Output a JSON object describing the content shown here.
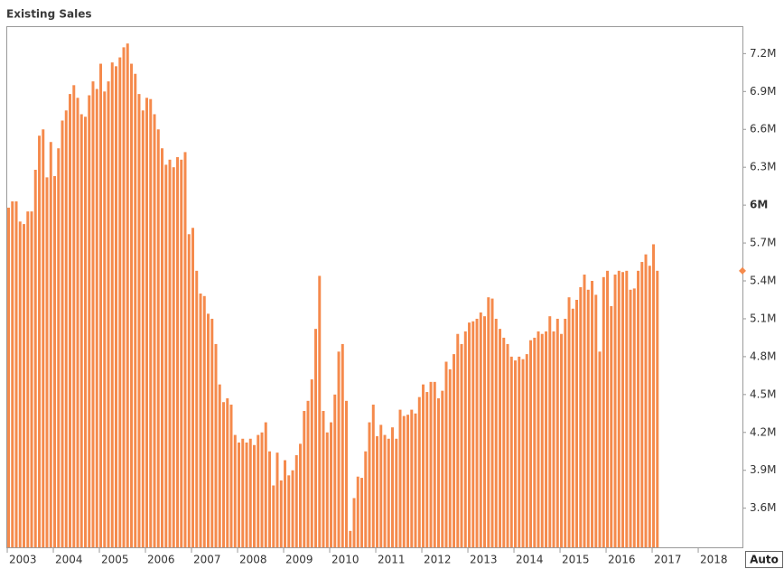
{
  "chart_data": {
    "type": "bar",
    "title": "Existing Sales",
    "auto_button_label": "Auto",
    "color": "#f58a4c",
    "grid": false,
    "x": [
      2003,
      2003.083,
      2003.167,
      2003.25,
      2003.333,
      2003.417,
      2003.5,
      2003.583,
      2003.667,
      2003.75,
      2003.833,
      2003.917,
      2004,
      2004.083,
      2004.167,
      2004.25,
      2004.333,
      2004.417,
      2004.5,
      2004.583,
      2004.667,
      2004.75,
      2004.833,
      2004.917,
      2005,
      2005.083,
      2005.167,
      2005.25,
      2005.333,
      2005.417,
      2005.5,
      2005.583,
      2005.667,
      2005.75,
      2005.833,
      2005.917,
      2006,
      2006.083,
      2006.167,
      2006.25,
      2006.333,
      2006.417,
      2006.5,
      2006.583,
      2006.667,
      2006.75,
      2006.833,
      2006.917,
      2007,
      2007.083,
      2007.167,
      2007.25,
      2007.333,
      2007.417,
      2007.5,
      2007.583,
      2007.667,
      2007.75,
      2007.833,
      2007.917,
      2008,
      2008.083,
      2008.167,
      2008.25,
      2008.333,
      2008.417,
      2008.5,
      2008.583,
      2008.667,
      2008.75,
      2008.833,
      2008.917,
      2009,
      2009.083,
      2009.167,
      2009.25,
      2009.333,
      2009.417,
      2009.5,
      2009.583,
      2009.667,
      2009.75,
      2009.833,
      2009.917,
      2010,
      2010.083,
      2010.167,
      2010.25,
      2010.333,
      2010.417,
      2010.5,
      2010.583,
      2010.667,
      2010.75,
      2010.833,
      2010.917,
      2011,
      2011.083,
      2011.167,
      2011.25,
      2011.333,
      2011.417,
      2011.5,
      2011.583,
      2011.667,
      2011.75,
      2011.833,
      2011.917,
      2012,
      2012.083,
      2012.167,
      2012.25,
      2012.333,
      2012.417,
      2012.5,
      2012.583,
      2012.667,
      2012.75,
      2012.833,
      2012.917,
      2013,
      2013.083,
      2013.167,
      2013.25,
      2013.333,
      2013.417,
      2013.5,
      2013.583,
      2013.667,
      2013.75,
      2013.833,
      2013.917,
      2014,
      2014.083,
      2014.167,
      2014.25,
      2014.333,
      2014.417,
      2014.5,
      2014.583,
      2014.667,
      2014.75,
      2014.833,
      2014.917,
      2015,
      2015.083,
      2015.167,
      2015.25,
      2015.333,
      2015.417,
      2015.5,
      2015.583,
      2015.667,
      2015.75,
      2015.833,
      2015.917,
      2016,
      2016.083,
      2016.167,
      2016.25,
      2016.333,
      2016.417,
      2016.5,
      2016.583,
      2016.667,
      2016.75,
      2016.833,
      2016.917,
      2017,
      2017.083
    ],
    "values": [
      5980000,
      6030000,
      6030000,
      5870000,
      5850000,
      5950000,
      5950000,
      6280000,
      6550000,
      6600000,
      6220000,
      6500000,
      6230000,
      6450000,
      6670000,
      6750000,
      6880000,
      6950000,
      6850000,
      6720000,
      6700000,
      6870000,
      6980000,
      6920000,
      7120000,
      6900000,
      6980000,
      7130000,
      7100000,
      7170000,
      7250000,
      7280000,
      7120000,
      7040000,
      6880000,
      6750000,
      6850000,
      6840000,
      6720000,
      6600000,
      6450000,
      6320000,
      6360000,
      6300000,
      6380000,
      6360000,
      6420000,
      5770000,
      5820000,
      5480000,
      5300000,
      5280000,
      5140000,
      5100000,
      4900000,
      4580000,
      4440000,
      4470000,
      4420000,
      4180000,
      4120000,
      4150000,
      4120000,
      4150000,
      4100000,
      4180000,
      4200000,
      4280000,
      4050000,
      3780000,
      4040000,
      3820000,
      3980000,
      3860000,
      3900000,
      4020000,
      4110000,
      4370000,
      4450000,
      4620000,
      5020000,
      5440000,
      4370000,
      4200000,
      4280000,
      4500000,
      4840000,
      4900000,
      4450000,
      3420000,
      3680000,
      3850000,
      3840000,
      4050000,
      4280000,
      4420000,
      4170000,
      4260000,
      4180000,
      4150000,
      4240000,
      4150000,
      4380000,
      4330000,
      4340000,
      4380000,
      4350000,
      4480000,
      4580000,
      4520000,
      4600000,
      4600000,
      4470000,
      4530000,
      4760000,
      4700000,
      4820000,
      4980000,
      4900000,
      5000000,
      5070000,
      5080000,
      5100000,
      5150000,
      5120000,
      5270000,
      5260000,
      5100000,
      5020000,
      4950000,
      4900000,
      4800000,
      4770000,
      4800000,
      4780000,
      4820000,
      4930000,
      4950000,
      5000000,
      4980000,
      5000000,
      5120000,
      5000000,
      5100000,
      4980000,
      5100000,
      5270000,
      5180000,
      5250000,
      5350000,
      5450000,
      5330000,
      5400000,
      5290000,
      4840000,
      5430000,
      5480000,
      5200000,
      5450000,
      5480000,
      5470000,
      5480000,
      5330000,
      5340000,
      5480000,
      5550000,
      5610000,
      5520000,
      5690000,
      5480000
    ],
    "xlim": [
      2002.98,
      2018.96
    ],
    "xticks": [
      2003,
      2004,
      2005,
      2006,
      2007,
      2008,
      2009,
      2010,
      2011,
      2012,
      2013,
      2014,
      2015,
      2016,
      2017,
      2018
    ],
    "ylim": [
      3290000,
      7410000
    ],
    "yticks": [
      {
        "value": 3600000,
        "label": "3.6M"
      },
      {
        "value": 3900000,
        "label": "3.9M"
      },
      {
        "value": 4200000,
        "label": "4.2M"
      },
      {
        "value": 4500000,
        "label": "4.5M"
      },
      {
        "value": 4800000,
        "label": "4.8M"
      },
      {
        "value": 5100000,
        "label": "5.1M"
      },
      {
        "value": 5400000,
        "label": "5.4M"
      },
      {
        "value": 5700000,
        "label": "5.7M"
      },
      {
        "value": 6000000,
        "label": "6M"
      },
      {
        "value": 6300000,
        "label": "6.3M"
      },
      {
        "value": 6600000,
        "label": "6.6M"
      },
      {
        "value": 6900000,
        "label": "6.9M"
      },
      {
        "value": 7200000,
        "label": "7.2M"
      }
    ]
  }
}
